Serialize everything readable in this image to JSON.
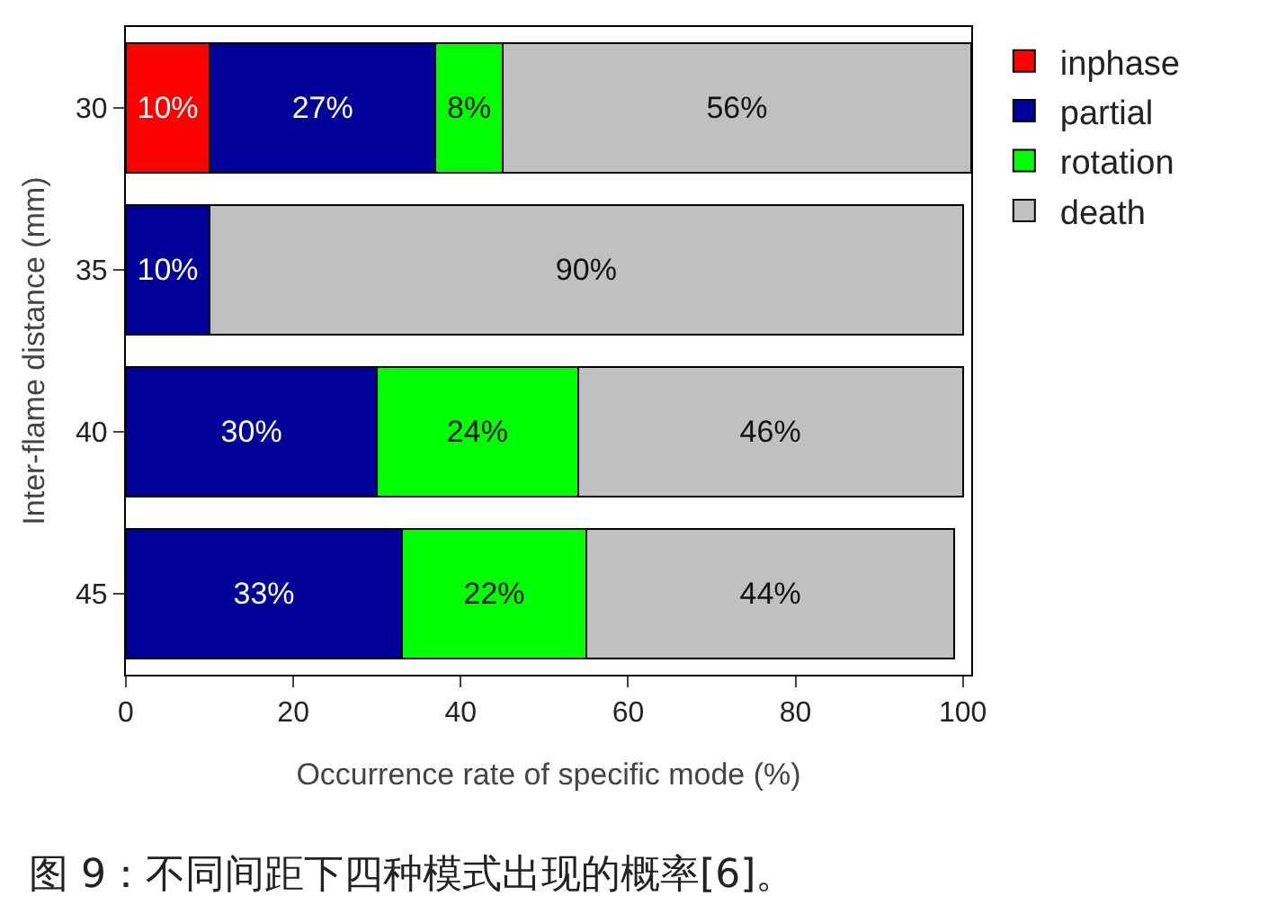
{
  "chart_data": {
    "type": "bar",
    "orientation": "horizontal",
    "stacked": true,
    "ylabel": "Inter-flame distance (mm)",
    "xlabel": "Occurrence rate of specific mode (%)",
    "categories": [
      "30",
      "35",
      "40",
      "45"
    ],
    "series": [
      {
        "name": "inphase",
        "color": "#ff0000",
        "values": [
          10,
          null,
          null,
          null
        ],
        "value_labels": [
          "10%",
          null,
          null,
          null
        ]
      },
      {
        "name": "partial",
        "color": "#000099",
        "values": [
          27,
          10,
          30,
          33
        ],
        "value_labels": [
          "27%",
          "10%",
          "30%",
          "33%"
        ]
      },
      {
        "name": "rotation",
        "color": "#00ff00",
        "values": [
          8,
          null,
          24,
          22
        ],
        "value_labels": [
          "8%",
          null,
          "24%",
          "22%"
        ]
      },
      {
        "name": "death",
        "color": "#c0c0c0",
        "values": [
          56,
          90,
          46,
          44
        ],
        "value_labels": [
          "56%",
          "90%",
          "46%",
          "44%"
        ]
      }
    ],
    "xlim": [
      0,
      101
    ],
    "xticks": [
      0,
      20,
      40,
      60,
      80,
      100
    ],
    "legend": "top right",
    "grid": false,
    "annotations": [
      "图 9：不同间距下四种模式出现的概率[6]。"
    ]
  }
}
